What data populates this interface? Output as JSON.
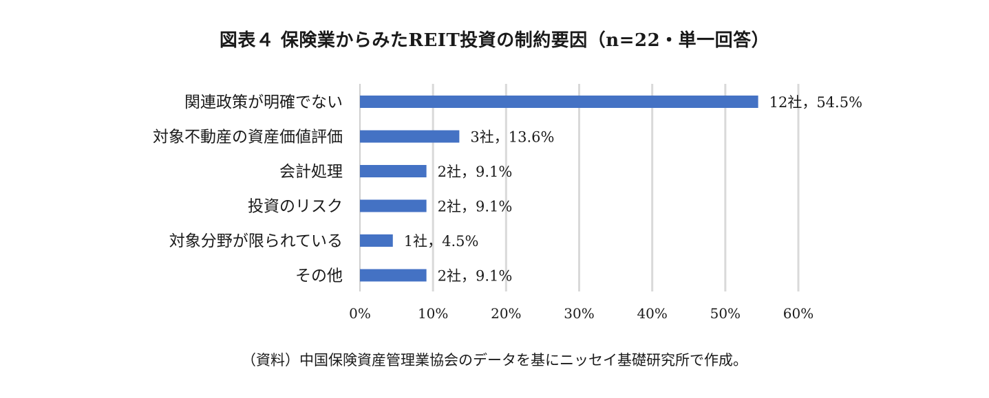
{
  "chart_data": {
    "type": "bar",
    "orientation": "horizontal",
    "title": "図表４ 保険業からみたREIT投資の制約要因（n=22・単一回答）",
    "source": "（資料）中国保険資産管理業協会のデータを基にニッセイ基礎研究所で作成。",
    "categories": [
      "関連政策が明確でない",
      "対象不動産の資産価値評価",
      "会計処理",
      "投資のリスク",
      "対象分野が限られている",
      "その他"
    ],
    "values": [
      54.5,
      13.6,
      9.1,
      9.1,
      4.5,
      9.1
    ],
    "counts": [
      12,
      3,
      2,
      2,
      1,
      2
    ],
    "data_labels": [
      "12社，54.5%",
      "3社，13.6%",
      "2社，9.1%",
      "2社，9.1%",
      "1社，4.5%",
      "2社，9.1%"
    ],
    "xlim": [
      0,
      60
    ],
    "xticks": [
      0,
      10,
      20,
      30,
      40,
      50,
      60
    ],
    "xtick_labels": [
      "0%",
      "10%",
      "20%",
      "30%",
      "40%",
      "50%",
      "60%"
    ],
    "xlabel": "",
    "ylabel": "",
    "grid": "vertical",
    "legend": "none",
    "colors": {
      "bar": "#4472c4",
      "grid": "#d9d9d9",
      "axis": "#bfbfbf"
    }
  }
}
